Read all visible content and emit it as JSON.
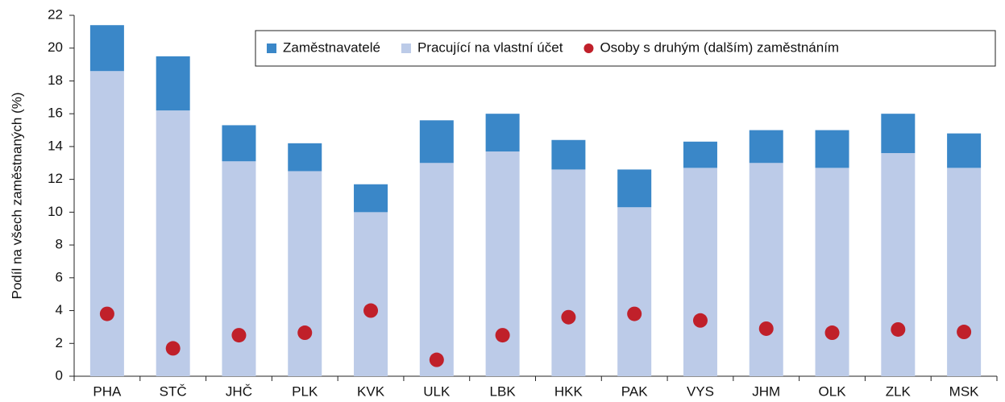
{
  "chart_data": {
    "type": "bar",
    "stacked": true,
    "y_label": "Podíl na všech zaměstnaných (%)",
    "categories": [
      "PHA",
      "STČ",
      "JHČ",
      "PLK",
      "KVK",
      "ULK",
      "LBK",
      "HKK",
      "PAK",
      "VYS",
      "JHM",
      "OLK",
      "ZLK",
      "MSK"
    ],
    "series": [
      {
        "name": "Zaměstnavatelé",
        "type": "bar",
        "color": "#3a87c8",
        "values": [
          2.8,
          3.3,
          2.2,
          1.7,
          1.7,
          2.6,
          2.3,
          1.8,
          2.3,
          1.6,
          2.0,
          2.3,
          2.4,
          2.1
        ]
      },
      {
        "name": "Pracující na vlastní účet",
        "type": "bar",
        "color": "#bccbe8",
        "values": [
          18.6,
          16.2,
          13.1,
          12.5,
          10.0,
          13.0,
          13.7,
          12.6,
          10.3,
          12.7,
          13.0,
          12.7,
          13.6,
          12.7
        ]
      },
      {
        "name": "Osoby s druhým (dalším) zaměstnáním",
        "type": "scatter",
        "color": "#c0202a",
        "values": [
          3.8,
          1.7,
          2.5,
          2.65,
          4.0,
          1.0,
          2.5,
          3.6,
          3.8,
          3.4,
          2.9,
          2.65,
          2.85,
          2.7
        ]
      }
    ],
    "ylim": [
      0,
      22
    ],
    "yticks": [
      0,
      2,
      4,
      6,
      8,
      10,
      12,
      14,
      16,
      18,
      20,
      22
    ],
    "legend": "top-right"
  }
}
